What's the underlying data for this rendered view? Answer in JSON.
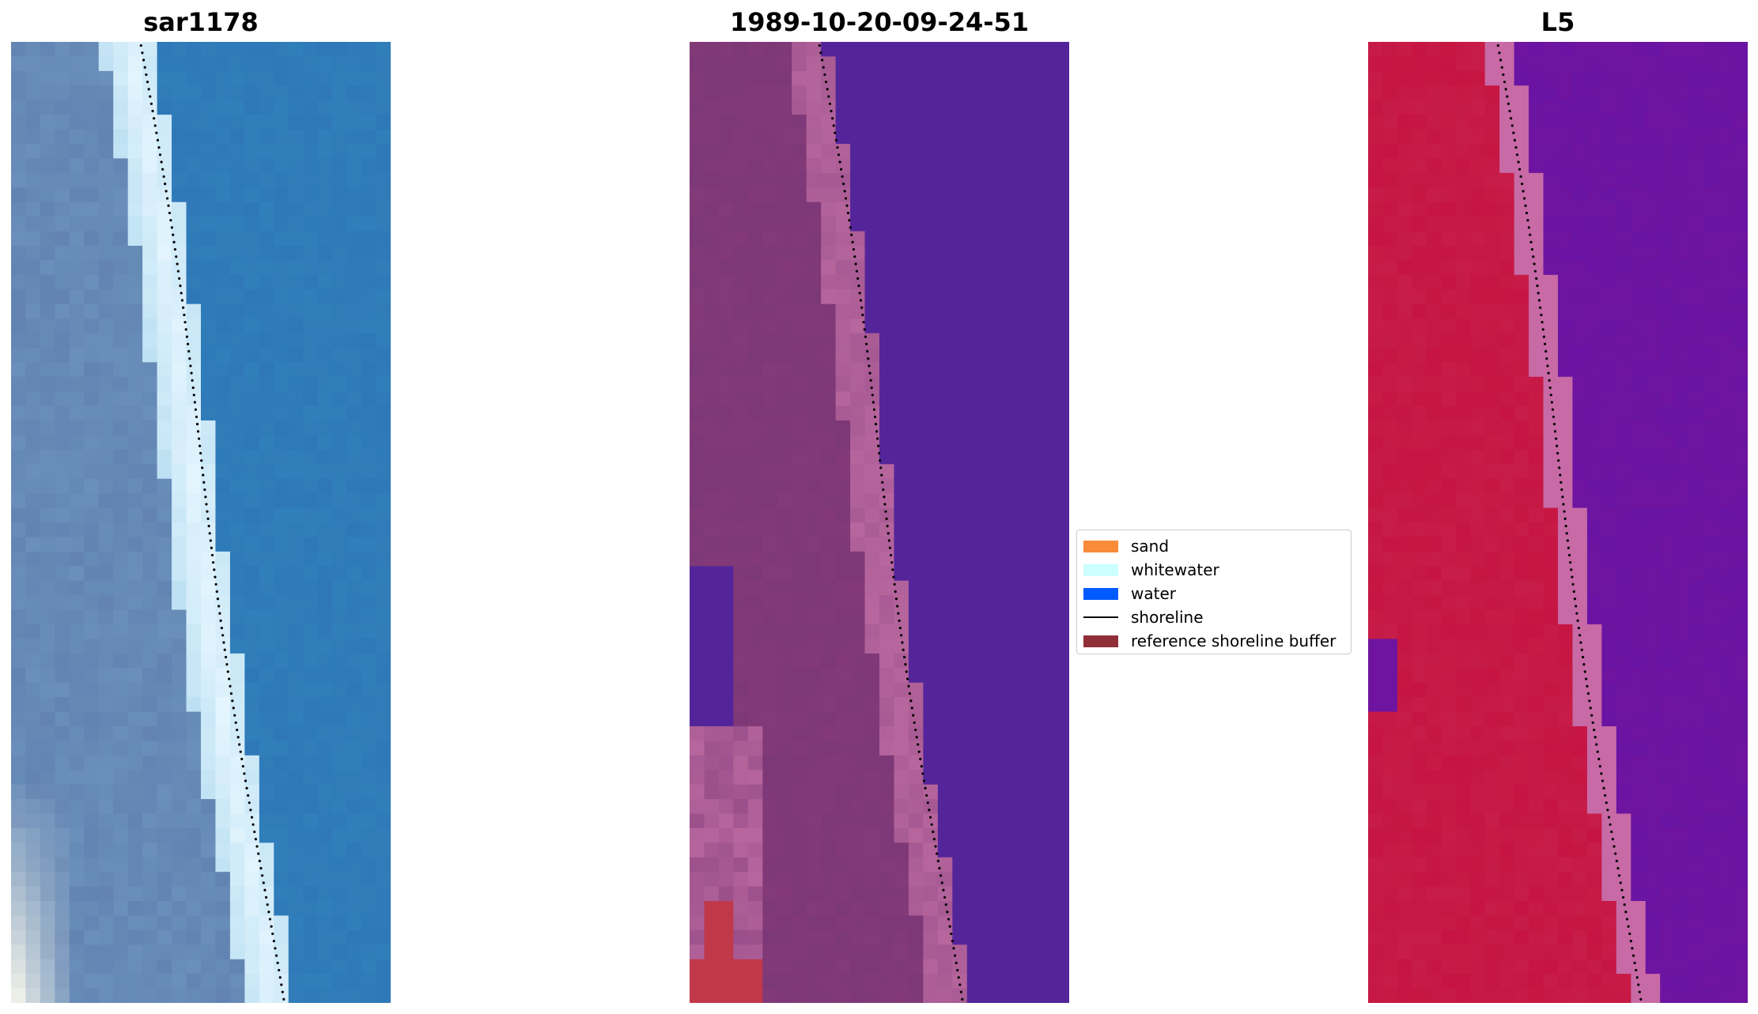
{
  "panels": [
    {
      "title": "sar1178"
    },
    {
      "title": "1989-10-20-09-24-51"
    },
    {
      "title": "L5"
    }
  ],
  "legend": {
    "items": [
      {
        "label": "sand",
        "color": "#f98b3a",
        "kind": "patch"
      },
      {
        "label": "whitewater",
        "color": "#ccffff",
        "kind": "patch"
      },
      {
        "label": "water",
        "color": "#005bff",
        "kind": "patch"
      },
      {
        "label": "shoreline",
        "color": "#000000",
        "kind": "line"
      },
      {
        "label": "reference shoreline buffer",
        "color": "#902f38",
        "kind": "patch"
      }
    ]
  },
  "colors": {
    "rgb_water": "#2f78b8",
    "rgb_whitewater": "#e6f6ff",
    "rgb_land": "#6a8fba",
    "class_water": "#54259a",
    "class_sand": "#7d3878",
    "class_sand_light": "#b8679e",
    "class_buffer": "#c0394a",
    "nir_land": "#c61542",
    "nir_water": "#6e14a0",
    "nir_edge": "#c76aa6"
  }
}
